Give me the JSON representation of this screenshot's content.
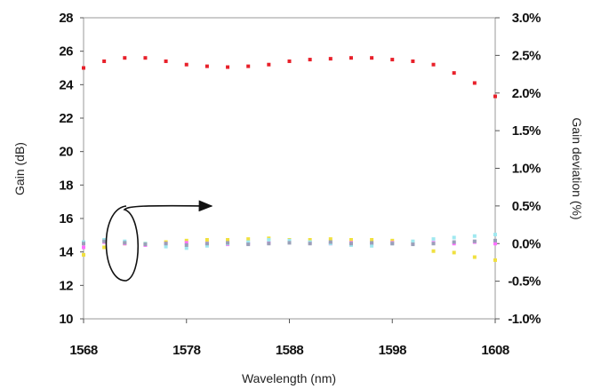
{
  "chart_data": {
    "type": "scatter",
    "title": "",
    "xlabel": "Wavelength (nm)",
    "ylabel": "Gain (dB)",
    "y2label": "Gain deviation (%)",
    "xlim": [
      1568,
      1608
    ],
    "ylim": [
      10,
      28
    ],
    "y2lim": [
      -1.0,
      3.0
    ],
    "x_ticks": [
      "1568",
      "1578",
      "1588",
      "1598",
      "1608"
    ],
    "y_ticks": [
      "10",
      "12",
      "14",
      "16",
      "18",
      "20",
      "22",
      "24",
      "26",
      "28"
    ],
    "y2_ticks": [
      "-1.0%",
      "-0.5%",
      "0.0%",
      "0.5%",
      "1.0%",
      "1.5%",
      "2.0%",
      "2.5%",
      "3.0%"
    ],
    "grid": false,
    "legend": "none",
    "series": [
      {
        "axis": "left",
        "color": "#e8202a",
        "x": [
          1568,
          1570,
          1572,
          1574,
          1576,
          1578,
          1580,
          1582,
          1584,
          1586,
          1588,
          1590,
          1592,
          1594,
          1596,
          1598,
          1600,
          1602,
          1604,
          1606,
          1608
        ],
        "y": [
          25.0,
          25.4,
          25.6,
          25.6,
          25.4,
          25.2,
          25.1,
          25.05,
          25.1,
          25.2,
          25.4,
          25.5,
          25.55,
          25.6,
          25.6,
          25.5,
          25.4,
          25.2,
          24.7,
          24.1,
          23.3
        ]
      },
      {
        "axis": "right",
        "color": "#f0e040",
        "x": [
          1568,
          1570,
          1572,
          1574,
          1576,
          1578,
          1580,
          1582,
          1584,
          1586,
          1588,
          1590,
          1592,
          1594,
          1596,
          1598,
          1600,
          1602,
          1604,
          1606,
          1608
        ],
        "y": [
          -0.15,
          -0.05,
          0.0,
          0.0,
          0.02,
          0.04,
          0.05,
          0.05,
          0.06,
          0.07,
          0.05,
          0.05,
          0.06,
          0.05,
          0.05,
          0.04,
          0.02,
          -0.1,
          -0.12,
          -0.18,
          -0.22
        ]
      },
      {
        "axis": "right",
        "color": "#ff70ff",
        "x": [
          1568,
          1570,
          1572,
          1574,
          1576,
          1578,
          1580,
          1582,
          1584,
          1586,
          1588,
          1590,
          1592,
          1594,
          1596,
          1598,
          1600,
          1602,
          1604,
          1606,
          1608
        ],
        "y": [
          -0.05,
          0.02,
          0.0,
          -0.02,
          0.0,
          0.01,
          0.0,
          -0.01,
          0.0,
          0.01,
          0.02,
          0.01,
          0.0,
          0.01,
          0.0,
          0.01,
          0.0,
          0.01,
          0.0,
          0.02,
          0.0
        ]
      },
      {
        "axis": "right",
        "color": "#a0e8f0",
        "x": [
          1568,
          1570,
          1572,
          1574,
          1576,
          1578,
          1580,
          1582,
          1584,
          1586,
          1588,
          1590,
          1592,
          1594,
          1596,
          1598,
          1600,
          1602,
          1604,
          1606,
          1608
        ],
        "y": [
          0.02,
          0.05,
          0.03,
          0.0,
          -0.04,
          -0.06,
          -0.03,
          0.0,
          0.02,
          0.05,
          0.04,
          0.02,
          0.0,
          -0.02,
          -0.03,
          0.0,
          0.03,
          0.06,
          0.08,
          0.1,
          0.12
        ]
      },
      {
        "axis": "right",
        "color": "#9aa0b8",
        "x": [
          1568,
          1570,
          1572,
          1574,
          1576,
          1578,
          1580,
          1582,
          1584,
          1586,
          1588,
          1590,
          1592,
          1594,
          1596,
          1598,
          1600,
          1602,
          1604,
          1606,
          1608
        ],
        "y": [
          0.0,
          0.03,
          0.01,
          -0.01,
          0.0,
          -0.02,
          0.0,
          0.01,
          -0.01,
          0.0,
          0.01,
          0.0,
          0.02,
          0.0,
          0.01,
          0.0,
          -0.01,
          0.0,
          0.02,
          0.03,
          0.04
        ]
      }
    ],
    "annotations": [
      {
        "type": "arrow",
        "description": "curved bracket around the lower scatter group with an arrow pointing right toward the right axis"
      }
    ]
  }
}
